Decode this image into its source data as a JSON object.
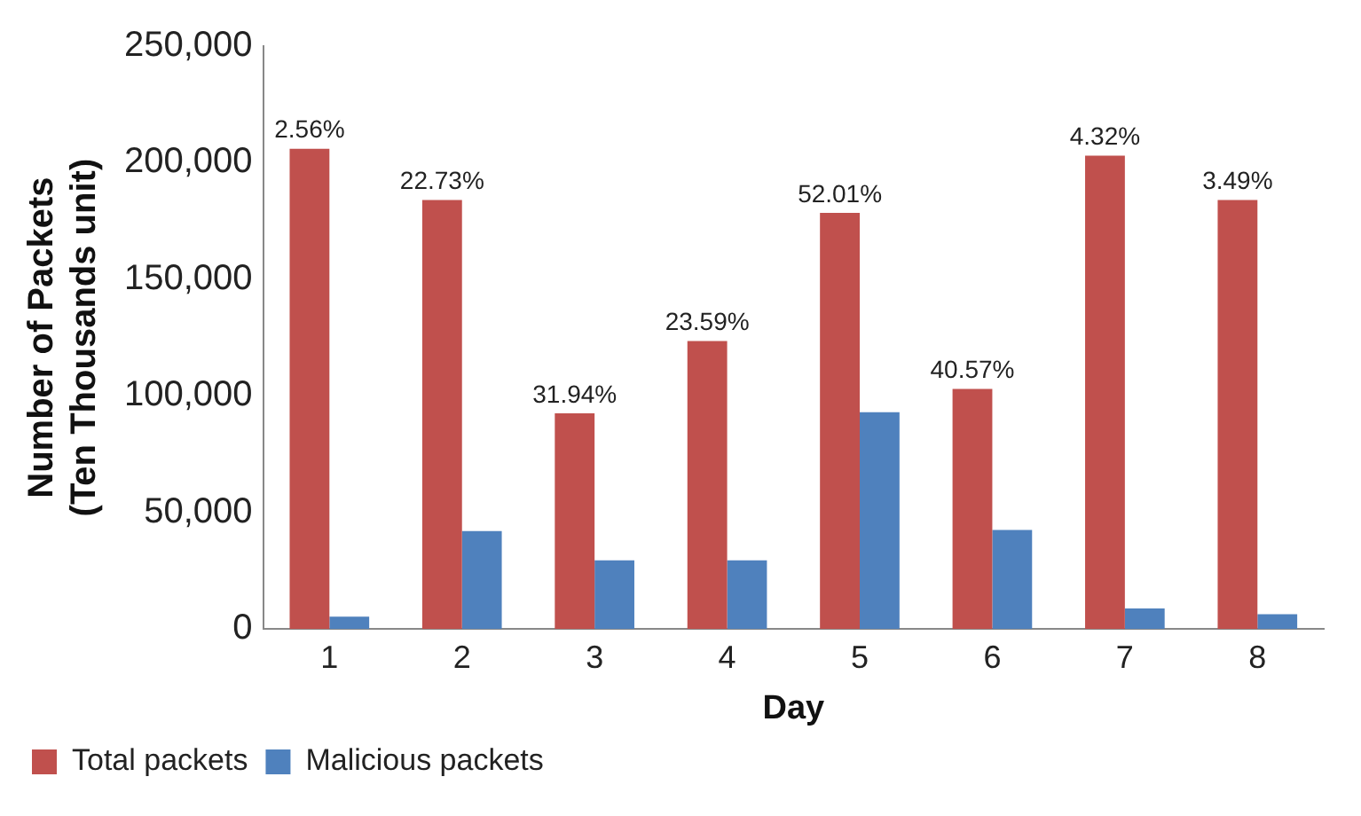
{
  "chart_data": {
    "type": "bar",
    "xlabel": "Day",
    "ylabel": "Number of Packets\n(Ten Thousands unit)",
    "categories": [
      "1",
      "2",
      "3",
      "4",
      "5",
      "6",
      "7",
      "8"
    ],
    "series": [
      {
        "name": "Total packets",
        "color": "#c0504d",
        "values": [
          206000,
          184000,
          92500,
          123500,
          178500,
          103000,
          203000,
          184000
        ]
      },
      {
        "name": "Malicious packets",
        "color": "#4f81bd",
        "values": [
          5300,
          42000,
          29500,
          29500,
          93000,
          42500,
          8800,
          6400
        ]
      }
    ],
    "annotations": [
      {
        "text": "2.56%",
        "x": "1",
        "y": 206000
      },
      {
        "text": "22.73%",
        "x": "2",
        "y": 184000
      },
      {
        "text": "31.94%",
        "x": "3",
        "y": 92500
      },
      {
        "text": "23.59%",
        "x": "4",
        "y": 123500
      },
      {
        "text": "52.01%",
        "x": "5",
        "y": 178500
      },
      {
        "text": "40.57%",
        "x": "6",
        "y": 103000
      },
      {
        "text": "4.32%",
        "x": "7",
        "y": 203000
      },
      {
        "text": "3.49%",
        "x": "8",
        "y": 184000
      }
    ],
    "ylim": [
      0,
      250000
    ],
    "yticks": [
      0,
      {
        "value": 50000,
        "label": "50,000"
      },
      {
        "value": 100000,
        "label": "100,000"
      },
      {
        "value": 150000,
        "label": "150,000"
      },
      {
        "value": 200000,
        "label": "200,000"
      },
      {
        "value": 250000,
        "label": "250,000"
      }
    ],
    "grid": false,
    "legend": "bottom left"
  }
}
